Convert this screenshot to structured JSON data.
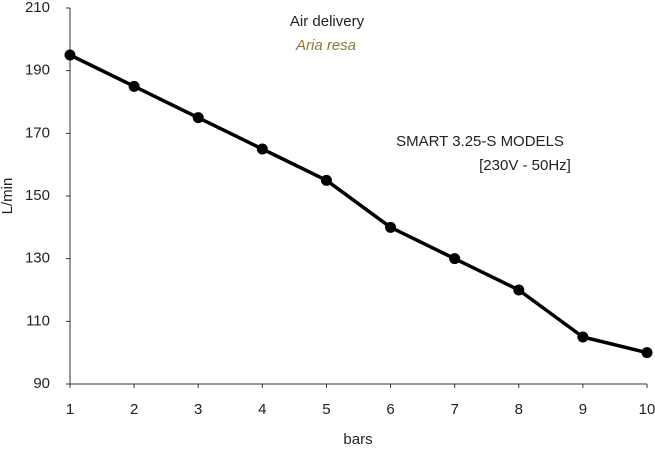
{
  "chart_data": {
    "type": "line",
    "title": "Air delivery",
    "subtitle": "Aria resa",
    "annotation": [
      "SMART 3.25-S MODELS",
      "[230V - 50Hz]"
    ],
    "x_label": "bars",
    "y_label": "L/min",
    "x": [
      1,
      2,
      3,
      4,
      5,
      6,
      7,
      8,
      9,
      10
    ],
    "values": [
      195,
      185,
      175,
      165,
      155,
      140,
      130,
      120,
      105,
      100
    ],
    "color": "#000000",
    "xlim": [
      1,
      10
    ],
    "xticks": [
      1,
      2,
      3,
      4,
      5,
      6,
      7,
      8,
      9,
      10
    ],
    "ylim": [
      90,
      210
    ],
    "yticks": [
      90,
      110,
      130,
      150,
      170,
      190,
      210
    ]
  }
}
